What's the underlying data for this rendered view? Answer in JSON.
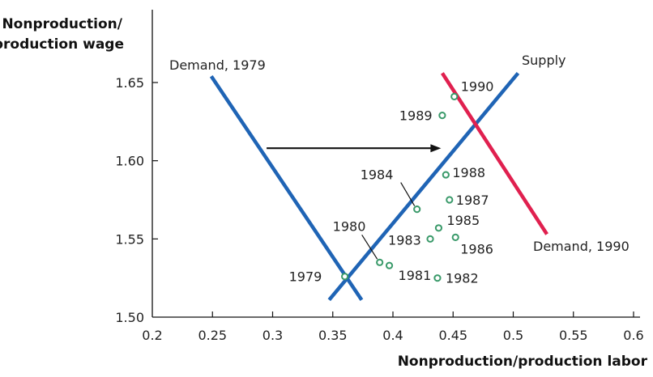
{
  "chart_data": {
    "type": "scatter",
    "title": "",
    "ylabel_lines": [
      "Nonproduction/",
      "production wage"
    ],
    "xlabel": "Nonproduction/production labor",
    "xlim": [
      0.2,
      0.6
    ],
    "ylim": [
      1.5,
      1.66
    ],
    "x_ticks": [
      "0.2",
      "0.25",
      "0.3",
      "0.35",
      "0.4",
      "0.45",
      "0.5",
      "0.55",
      "0.6"
    ],
    "y_ticks": [
      "1.50",
      "1.55",
      "1.60",
      "1.65"
    ],
    "grid": false,
    "points": [
      {
        "label": "1979",
        "x": 0.36,
        "y": 1.526
      },
      {
        "label": "1980",
        "x": 0.389,
        "y": 1.535
      },
      {
        "label": "1981",
        "x": 0.397,
        "y": 1.533
      },
      {
        "label": "1982",
        "x": 0.437,
        "y": 1.525
      },
      {
        "label": "1983",
        "x": 0.431,
        "y": 1.55
      },
      {
        "label": "1984",
        "x": 0.42,
        "y": 1.569
      },
      {
        "label": "1985",
        "x": 0.438,
        "y": 1.557
      },
      {
        "label": "1986",
        "x": 0.452,
        "y": 1.551
      },
      {
        "label": "1987",
        "x": 0.447,
        "y": 1.575
      },
      {
        "label": "1988",
        "x": 0.444,
        "y": 1.591
      },
      {
        "label": "1989",
        "x": 0.441,
        "y": 1.629
      },
      {
        "label": "1990",
        "x": 0.451,
        "y": 1.641
      }
    ],
    "lines": [
      {
        "name": "Demand, 1979",
        "color": "#1f64b5",
        "points": [
          [
            0.249,
            1.654
          ],
          [
            0.374,
            1.511
          ]
        ]
      },
      {
        "name": "Supply",
        "color": "#1f64b5",
        "points": [
          [
            0.347,
            1.511
          ],
          [
            0.504,
            1.656
          ]
        ]
      },
      {
        "name": "Demand, 1990",
        "color": "#e0204f",
        "points": [
          [
            0.441,
            1.656
          ],
          [
            0.528,
            1.553
          ]
        ]
      }
    ],
    "arrow": {
      "from": [
        0.295,
        1.608
      ],
      "to": [
        0.44,
        1.608
      ],
      "color": "#111111"
    },
    "point_color": "#3a9a6a"
  }
}
